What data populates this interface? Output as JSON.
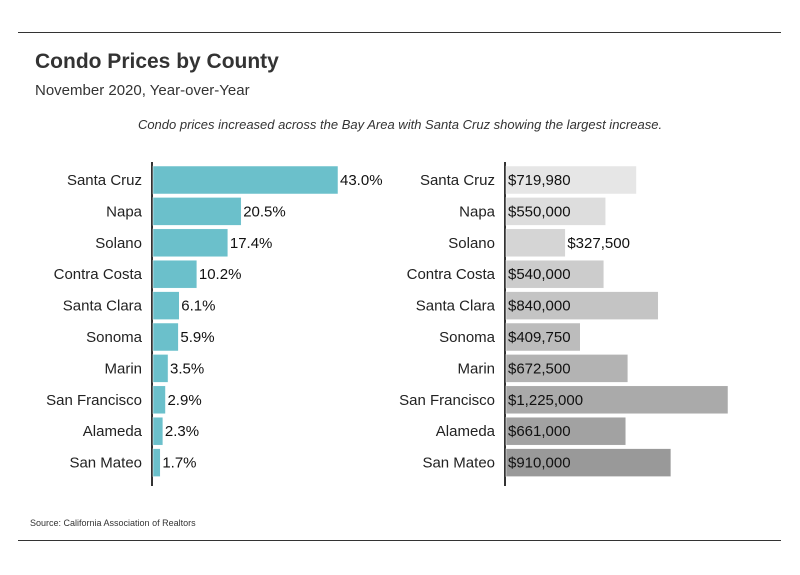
{
  "title": "Condo Prices by County",
  "subtitle": "November 2020, Year-over-Year",
  "note": "Condo prices increased across the Bay Area with Santa Cruz showing the largest increase.",
  "source": "Source:  California Association of Realtors",
  "colors": {
    "pct_bar": "#6bc0cb",
    "price_bars": [
      "#e6e6e6",
      "#dddddd",
      "#d5d5d5",
      "#cccccc",
      "#c4c4c4",
      "#bcbcbc",
      "#b3b3b3",
      "#aaaaaa",
      "#a2a2a2",
      "#999999"
    ],
    "axis": "#333333",
    "text": "#222222"
  },
  "chart_data": [
    {
      "type": "bar",
      "orientation": "horizontal",
      "categories": [
        "Santa Cruz",
        "Napa",
        "Solano",
        "Contra Costa",
        "Santa Clara",
        "Sonoma",
        "Marin",
        "San Francisco",
        "Alameda",
        "San Mateo"
      ],
      "values": [
        43.0,
        20.5,
        17.4,
        10.2,
        6.1,
        5.9,
        3.5,
        2.9,
        2.3,
        1.7
      ],
      "labels": [
        "43.0%",
        "20.5%",
        "17.4%",
        "10.2%",
        "6.1%",
        "5.9%",
        "3.5%",
        "2.9%",
        "2.3%",
        "1.7%"
      ],
      "xlim": [
        0,
        43
      ],
      "grid": false
    },
    {
      "type": "bar",
      "orientation": "horizontal",
      "categories": [
        "Santa Cruz",
        "Napa",
        "Solano",
        "Contra Costa",
        "Santa Clara",
        "Sonoma",
        "Marin",
        "San Francisco",
        "Alameda",
        "San Mateo"
      ],
      "values": [
        719980,
        550000,
        327500,
        540000,
        840000,
        409750,
        672500,
        1225000,
        661000,
        910000
      ],
      "labels": [
        "$719,980",
        "$550,000",
        "$327,500",
        "$540,000",
        "$840,000",
        "$409,750",
        "$672,500",
        "$1,225,000",
        "$661,000",
        "$910,000"
      ],
      "xlim": [
        0,
        1225000
      ],
      "grid": false
    }
  ]
}
